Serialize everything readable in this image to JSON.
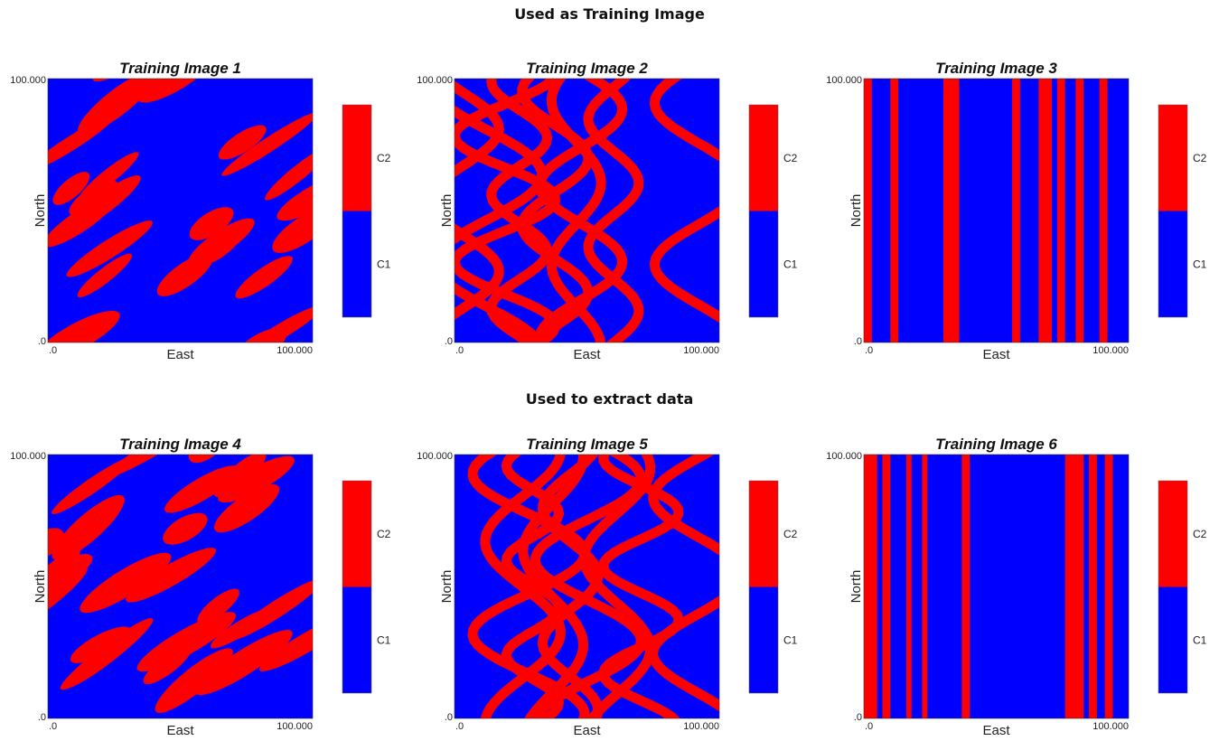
{
  "section_titles": {
    "top": "Used as Training Image",
    "bottom": "Used to extract data"
  },
  "colors": {
    "C1": "#0000ff",
    "C2": "#ff0000"
  },
  "chart_data": [
    {
      "type": "heatmap",
      "pattern": "ellipses",
      "seed": 11,
      "title": "Training Image 1",
      "xlabel": "East",
      "ylabel": "North",
      "xlim": [
        0,
        100
      ],
      "ylim": [
        0,
        100
      ],
      "x_tick_labels": [
        ".0",
        "100.000"
      ],
      "y_tick_labels": [
        ".0",
        "100.000"
      ],
      "legend": [
        "C2",
        "C1"
      ]
    },
    {
      "type": "heatmap",
      "pattern": "channels",
      "seed": 21,
      "title": "Training Image 2",
      "xlabel": "East",
      "ylabel": "North",
      "xlim": [
        0,
        100
      ],
      "ylim": [
        0,
        100
      ],
      "x_tick_labels": [
        ".0",
        "100.000"
      ],
      "y_tick_labels": [
        ".0",
        "100.000"
      ],
      "legend": [
        "C2",
        "C1"
      ]
    },
    {
      "type": "heatmap",
      "pattern": "stripes",
      "title": "Training Image 3",
      "xlabel": "East",
      "ylabel": "North",
      "xlim": [
        0,
        100
      ],
      "ylim": [
        0,
        100
      ],
      "x_tick_labels": [
        ".0",
        "100.000"
      ],
      "y_tick_labels": [
        ".0",
        "100.000"
      ],
      "legend": [
        "C2",
        "C1"
      ],
      "stripes": [
        [
          0,
          3
        ],
        [
          10,
          13
        ],
        [
          30,
          36
        ],
        [
          56,
          59
        ],
        [
          66,
          71
        ],
        [
          73,
          76
        ],
        [
          80,
          83
        ],
        [
          89,
          92
        ]
      ]
    },
    {
      "type": "heatmap",
      "pattern": "ellipses",
      "seed": 44,
      "title": "Training Image 4",
      "xlabel": "East",
      "ylabel": "North",
      "xlim": [
        0,
        100
      ],
      "ylim": [
        0,
        100
      ],
      "x_tick_labels": [
        ".0",
        "100.000"
      ],
      "y_tick_labels": [
        ".0",
        "100.000"
      ],
      "legend": [
        "C2",
        "C1"
      ]
    },
    {
      "type": "heatmap",
      "pattern": "channels",
      "seed": 57,
      "title": "Training Image 5",
      "xlabel": "East",
      "ylabel": "North",
      "xlim": [
        0,
        100
      ],
      "ylim": [
        0,
        100
      ],
      "x_tick_labels": [
        ".0",
        "100.000"
      ],
      "y_tick_labels": [
        ".0",
        "100.000"
      ],
      "legend": [
        "C2",
        "C1"
      ]
    },
    {
      "type": "heatmap",
      "pattern": "stripes",
      "title": "Training Image 6",
      "xlabel": "East",
      "ylabel": "North",
      "xlim": [
        0,
        100
      ],
      "ylim": [
        0,
        100
      ],
      "x_tick_labels": [
        ".0",
        "100.000"
      ],
      "y_tick_labels": [
        ".0",
        "100.000"
      ],
      "legend": [
        "C2",
        "C1"
      ],
      "stripes": [
        [
          0,
          5
        ],
        [
          7,
          10
        ],
        [
          16,
          18
        ],
        [
          22,
          24
        ],
        [
          37,
          40
        ],
        [
          76,
          83
        ],
        [
          85,
          88
        ],
        [
          91,
          94
        ]
      ]
    }
  ]
}
